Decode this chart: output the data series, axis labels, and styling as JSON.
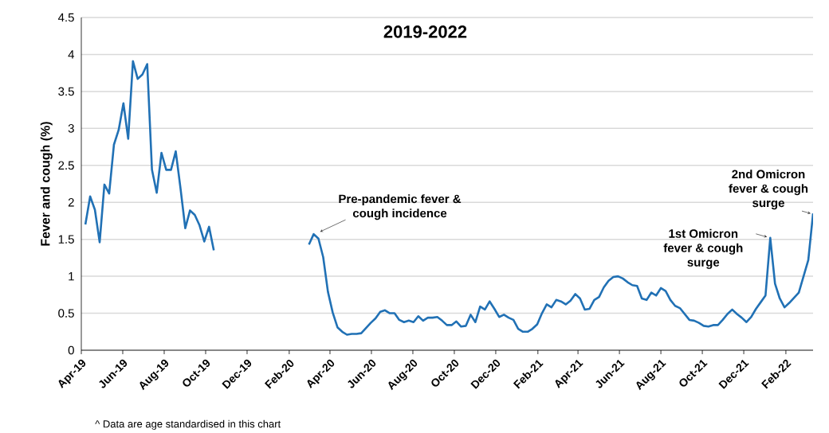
{
  "chart_data": {
    "type": "line",
    "title": "2019-2022",
    "ylabel": "Fever and cough (%)",
    "xlim": [
      "2019-04-01",
      "2022-03-13"
    ],
    "ylim": [
      0,
      4.5
    ],
    "xticks": [
      {
        "value": "2019-04-01",
        "label": "Apr-19"
      },
      {
        "value": "2019-06-01",
        "label": "Jun-19"
      },
      {
        "value": "2019-08-01",
        "label": "Aug-19"
      },
      {
        "value": "2019-10-01",
        "label": "Oct-19"
      },
      {
        "value": "2019-12-01",
        "label": "Dec-19"
      },
      {
        "value": "2020-02-01",
        "label": "Feb-20"
      },
      {
        "value": "2020-04-01",
        "label": "Apr-20"
      },
      {
        "value": "2020-06-01",
        "label": "Jun-20"
      },
      {
        "value": "2020-08-01",
        "label": "Aug-20"
      },
      {
        "value": "2020-10-01",
        "label": "Oct-20"
      },
      {
        "value": "2020-12-01",
        "label": "Dec-20"
      },
      {
        "value": "2021-02-01",
        "label": "Feb-21"
      },
      {
        "value": "2021-04-01",
        "label": "Apr-21"
      },
      {
        "value": "2021-06-01",
        "label": "Jun-21"
      },
      {
        "value": "2021-08-01",
        "label": "Aug-21"
      },
      {
        "value": "2021-10-01",
        "label": "Oct-21"
      },
      {
        "value": "2021-12-01",
        "label": "Dec-21"
      },
      {
        "value": "2022-02-01",
        "label": "Feb-22"
      }
    ],
    "yticks": [
      0,
      0.5,
      1,
      1.5,
      2,
      2.5,
      3,
      3.5,
      4,
      4.5
    ],
    "grid": "y",
    "series": [
      {
        "color": "#2171b5",
        "x": [
          "2019-04-07",
          "2019-04-14",
          "2019-04-21",
          "2019-04-28",
          "2019-05-05",
          "2019-05-12",
          "2019-05-19",
          "2019-05-26",
          "2019-06-02",
          "2019-06-09",
          "2019-06-16",
          "2019-06-23",
          "2019-06-30",
          "2019-07-07",
          "2019-07-14",
          "2019-07-21",
          "2019-07-28",
          "2019-08-04",
          "2019-08-11",
          "2019-08-18",
          "2019-08-25",
          "2019-09-01",
          "2019-09-08",
          "2019-09-15",
          "2019-09-22",
          "2019-09-29",
          "2019-10-06",
          "2019-10-13",
          "2019-12-01",
          "2020-03-01",
          "2020-03-08",
          "2020-03-15",
          "2020-03-22",
          "2020-03-29",
          "2020-04-05",
          "2020-04-12",
          "2020-04-19",
          "2020-04-26",
          "2020-05-03",
          "2020-05-10",
          "2020-05-17",
          "2020-05-24",
          "2020-05-31",
          "2020-06-07",
          "2020-06-14",
          "2020-06-21",
          "2020-06-28",
          "2020-07-05",
          "2020-07-12",
          "2020-07-19",
          "2020-07-26",
          "2020-08-02",
          "2020-08-09",
          "2020-08-16",
          "2020-08-23",
          "2020-08-30",
          "2020-09-06",
          "2020-09-13",
          "2020-09-20",
          "2020-09-27",
          "2020-10-04",
          "2020-10-11",
          "2020-10-18",
          "2020-10-25",
          "2020-11-01",
          "2020-11-08",
          "2020-11-15",
          "2020-11-22",
          "2020-11-29",
          "2020-12-06",
          "2020-12-13",
          "2020-12-20",
          "2020-12-27",
          "2021-01-03",
          "2021-01-10",
          "2021-01-17",
          "2021-01-24",
          "2021-01-31",
          "2021-02-07",
          "2021-02-14",
          "2021-02-21",
          "2021-02-28",
          "2021-03-07",
          "2021-03-14",
          "2021-03-21",
          "2021-03-28",
          "2021-04-04",
          "2021-04-11",
          "2021-04-18",
          "2021-04-25",
          "2021-05-02",
          "2021-05-09",
          "2021-05-16",
          "2021-05-23",
          "2021-05-30",
          "2021-06-06",
          "2021-06-13",
          "2021-06-20",
          "2021-06-27",
          "2021-07-04",
          "2021-07-11",
          "2021-07-18",
          "2021-07-25",
          "2021-08-01",
          "2021-08-08",
          "2021-08-15",
          "2021-08-22",
          "2021-08-29",
          "2021-09-05",
          "2021-09-12",
          "2021-09-19",
          "2021-09-26",
          "2021-10-03",
          "2021-10-10",
          "2021-10-17",
          "2021-10-24",
          "2021-10-31",
          "2021-11-07",
          "2021-11-14",
          "2021-11-21",
          "2021-11-28",
          "2021-12-05",
          "2021-12-12",
          "2021-12-19",
          "2021-12-26",
          "2022-01-02",
          "2022-01-09",
          "2022-01-16",
          "2022-01-23",
          "2022-01-30",
          "2022-02-06",
          "2022-02-13",
          "2022-02-20",
          "2022-02-27",
          "2022-03-06",
          "2022-03-13"
        ],
        "values": [
          1.7,
          2.08,
          1.9,
          1.46,
          2.24,
          2.12,
          2.78,
          2.98,
          3.34,
          2.86,
          3.91,
          3.67,
          3.73,
          3.87,
          2.44,
          2.13,
          2.67,
          2.44,
          2.44,
          2.69,
          2.19,
          1.65,
          1.89,
          1.83,
          1.69,
          1.47,
          1.67,
          1.35,
          null,
          1.43,
          1.57,
          1.51,
          1.26,
          0.79,
          0.51,
          0.31,
          0.25,
          0.21,
          0.22,
          0.22,
          0.23,
          0.3,
          0.37,
          0.43,
          0.52,
          0.54,
          0.5,
          0.5,
          0.41,
          0.38,
          0.4,
          0.38,
          0.46,
          0.4,
          0.44,
          0.44,
          0.45,
          0.4,
          0.34,
          0.34,
          0.39,
          0.32,
          0.33,
          0.48,
          0.38,
          0.59,
          0.55,
          0.66,
          0.56,
          0.45,
          0.48,
          0.44,
          0.41,
          0.29,
          0.25,
          0.25,
          0.29,
          0.35,
          0.5,
          0.62,
          0.58,
          0.68,
          0.66,
          0.62,
          0.67,
          0.76,
          0.7,
          0.55,
          0.56,
          0.68,
          0.72,
          0.85,
          0.94,
          0.99,
          1.0,
          0.97,
          0.92,
          0.88,
          0.87,
          0.7,
          0.68,
          0.78,
          0.74,
          0.84,
          0.8,
          0.68,
          0.6,
          0.57,
          0.49,
          0.41,
          0.4,
          0.37,
          0.33,
          0.32,
          0.34,
          0.34,
          0.41,
          0.49,
          0.55,
          0.49,
          0.44,
          0.38,
          0.45,
          0.56,
          0.65,
          0.74,
          1.52,
          0.9,
          0.7,
          0.58,
          0.64,
          0.71,
          0.78,
          1.0,
          1.22,
          1.85
        ]
      }
    ],
    "annotations": [
      {
        "text": "Pre-pandemic fever & cough incidence",
        "x": "2020-03-08",
        "y": 1.57
      },
      {
        "text": "1st Omicron fever & cough surge",
        "x": "2022-01-09",
        "y": 1.52
      },
      {
        "text": "2nd Omicron fever & cough surge",
        "x": "2022-03-13",
        "y": 1.85
      },
      "^ Data are age standardised in this chart"
    ]
  }
}
